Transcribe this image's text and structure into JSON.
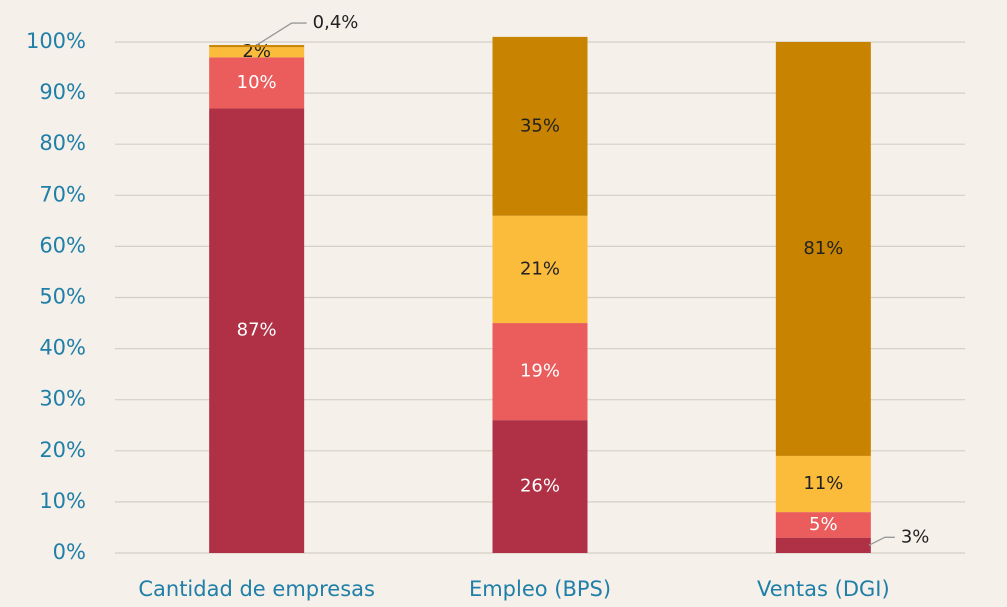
{
  "chart_data": {
    "type": "stacked_bar",
    "categories": [
      "Cantidad de empresas",
      "Empleo (BPS)",
      "Ventas (DGI)"
    ],
    "series": [
      {
        "color": "#b03045",
        "label_color": "#ffffff",
        "values": [
          87,
          26,
          3
        ],
        "value_labels": [
          "87%",
          "26%",
          "3%"
        ]
      },
      {
        "color": "#eb5c5c",
        "label_color": "#ffffff",
        "values": [
          10,
          19,
          5
        ],
        "value_labels": [
          "10%",
          "19%",
          "5%"
        ]
      },
      {
        "color": "#fbbb3b",
        "label_color": "#222222",
        "values": [
          2,
          21,
          11
        ],
        "value_labels": [
          "2%",
          "21%",
          "11%"
        ]
      },
      {
        "color": "#c88400",
        "label_color": "#222222",
        "values": [
          0.4,
          35,
          81
        ],
        "value_labels": [
          "0,4%",
          "35%",
          "81%"
        ]
      }
    ],
    "ylim": [
      0,
      100
    ],
    "yticks": [
      {
        "value": 0,
        "label": "0%"
      },
      {
        "value": 10,
        "label": "10%"
      },
      {
        "value": 20,
        "label": "20%"
      },
      {
        "value": 30,
        "label": "30%"
      },
      {
        "value": 40,
        "label": "40%"
      },
      {
        "value": 50,
        "label": "50%"
      },
      {
        "value": 60,
        "label": "60%"
      },
      {
        "value": 70,
        "label": "70%"
      },
      {
        "value": 80,
        "label": "80%"
      },
      {
        "value": 90,
        "label": "90%"
      },
      {
        "value": 100,
        "label": "100%"
      }
    ],
    "grid": true
  }
}
